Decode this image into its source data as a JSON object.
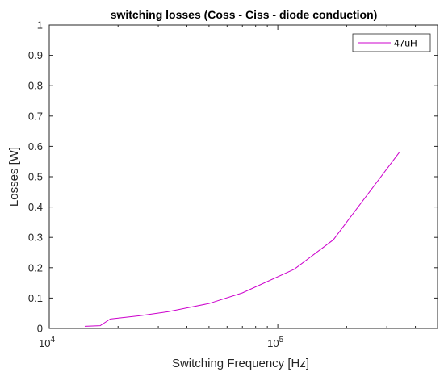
{
  "chart_data": {
    "type": "line",
    "title": "switching losses (Coss - Ciss - diode conduction)",
    "xlabel": "Switching Frequency [Hz]",
    "ylabel": "Losses [W]",
    "xscale": "log",
    "xlim": [
      10000,
      500000
    ],
    "ylim": [
      0,
      1
    ],
    "x_major_ticks": [
      {
        "value": 10000,
        "base": "10",
        "exp": "4"
      },
      {
        "value": 100000,
        "base": "10",
        "exp": "5"
      }
    ],
    "yticks": [
      "0",
      "0.1",
      "0.2",
      "0.3",
      "0.4",
      "0.5",
      "0.6",
      "0.7",
      "0.8",
      "0.9",
      "1"
    ],
    "grid": false,
    "legend_position": "top-right",
    "series": [
      {
        "name": "47uH",
        "color": "#cc00cc",
        "x": [
          14300,
          16700,
          18500,
          25000,
          33000,
          50000,
          70000,
          118000,
          175000,
          340000
        ],
        "y": [
          0.007,
          0.009,
          0.031,
          0.042,
          0.055,
          0.082,
          0.117,
          0.195,
          0.292,
          0.58
        ]
      }
    ]
  }
}
